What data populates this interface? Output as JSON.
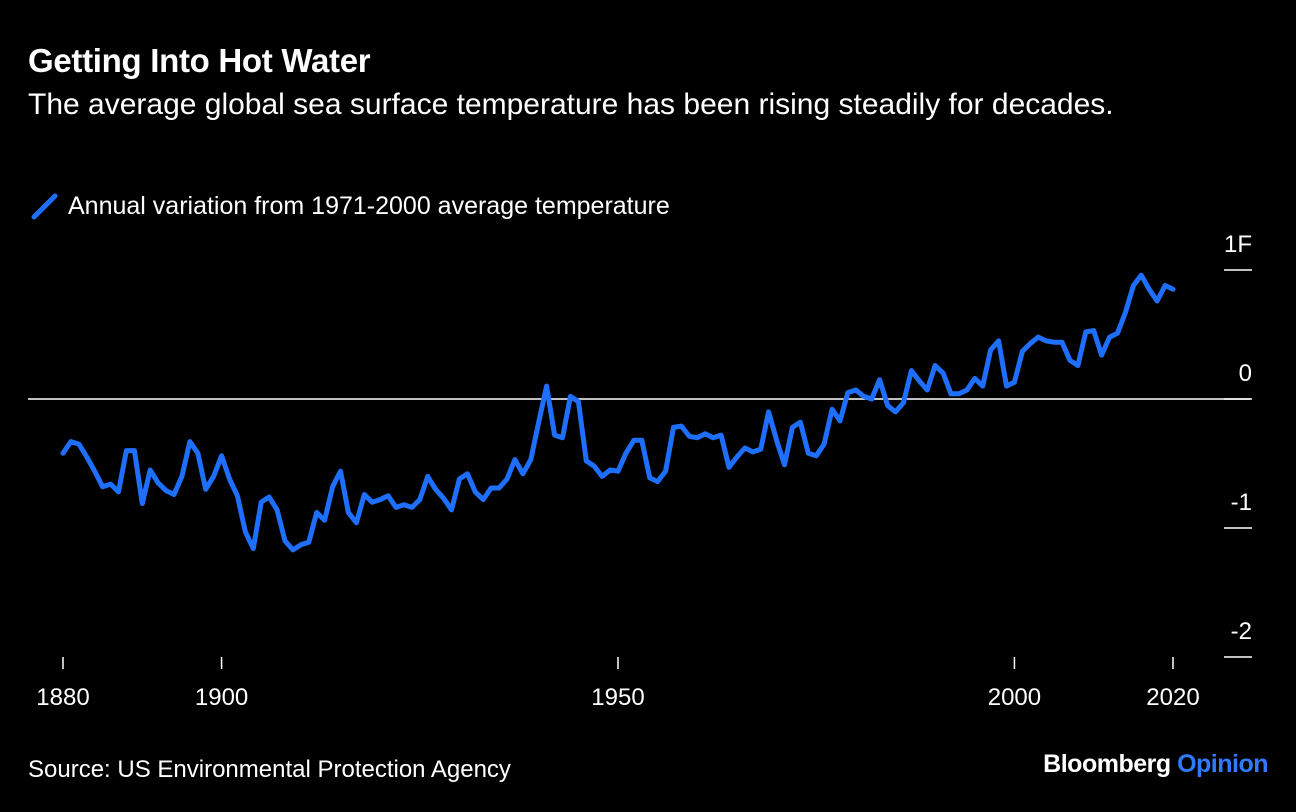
{
  "header": {
    "title": "Getting Into Hot Water",
    "subtitle": "The average global sea surface temperature has been rising steadily for decades."
  },
  "legend": {
    "label": "Annual variation from 1971-2000 average temperature"
  },
  "footer": {
    "source": "Source: US Environmental Protection Agency",
    "brand_name": "Bloomberg",
    "brand_suffix": "Opinion"
  },
  "colors": {
    "background": "#000000",
    "line": "#1f6fff",
    "text": "#ffffff",
    "brand_accent": "#2f7bff"
  },
  "chart_data": {
    "type": "line",
    "title": "Getting Into Hot Water",
    "xlabel": "",
    "ylabel": "",
    "xlim": [
      1876,
      2025
    ],
    "ylim": [
      -2,
      1
    ],
    "x_ticks": [
      1880,
      1900,
      1950,
      2000,
      2020
    ],
    "x_tick_labels": [
      "1880",
      "1900",
      "1950",
      "2000",
      "2020"
    ],
    "y_ticks": [
      1,
      0,
      -1,
      -2
    ],
    "y_tick_labels": [
      "1F",
      "0",
      "-1",
      "-2"
    ],
    "grid": false,
    "zero_line": true,
    "legend_position": "top-left",
    "series": [
      {
        "name": "Annual variation from 1971-2000 average temperature",
        "x": [
          1880,
          1881,
          1882,
          1883,
          1884,
          1885,
          1886,
          1887,
          1888,
          1889,
          1890,
          1891,
          1892,
          1893,
          1894,
          1895,
          1896,
          1897,
          1898,
          1899,
          1900,
          1901,
          1902,
          1903,
          1904,
          1905,
          1906,
          1907,
          1908,
          1909,
          1910,
          1911,
          1912,
          1913,
          1914,
          1915,
          1916,
          1917,
          1918,
          1919,
          1920,
          1921,
          1922,
          1923,
          1924,
          1925,
          1926,
          1927,
          1928,
          1929,
          1930,
          1931,
          1932,
          1933,
          1934,
          1935,
          1936,
          1937,
          1938,
          1939,
          1940,
          1941,
          1942,
          1943,
          1944,
          1945,
          1946,
          1947,
          1948,
          1949,
          1950,
          1951,
          1952,
          1953,
          1954,
          1955,
          1956,
          1957,
          1958,
          1959,
          1960,
          1961,
          1962,
          1963,
          1964,
          1965,
          1966,
          1967,
          1968,
          1969,
          1970,
          1971,
          1972,
          1973,
          1974,
          1975,
          1976,
          1977,
          1978,
          1979,
          1980,
          1981,
          1982,
          1983,
          1984,
          1985,
          1986,
          1987,
          1988,
          1989,
          1990,
          1991,
          1992,
          1993,
          1994,
          1995,
          1996,
          1997,
          1998,
          1999,
          2000,
          2001,
          2002,
          2003,
          2004,
          2005,
          2006,
          2007,
          2008,
          2009,
          2010,
          2011,
          2012,
          2013,
          2014,
          2015,
          2016,
          2017,
          2018,
          2019,
          2020
        ],
        "values": [
          -0.42,
          -0.33,
          -0.35,
          -0.45,
          -0.56,
          -0.68,
          -0.66,
          -0.72,
          -0.4,
          -0.4,
          -0.81,
          -0.55,
          -0.65,
          -0.71,
          -0.74,
          -0.6,
          -0.33,
          -0.42,
          -0.7,
          -0.6,
          -0.44,
          -0.62,
          -0.75,
          -1.03,
          -1.16,
          -0.8,
          -0.76,
          -0.86,
          -1.1,
          -1.17,
          -1.13,
          -1.11,
          -0.88,
          -0.94,
          -0.68,
          -0.56,
          -0.88,
          -0.96,
          -0.74,
          -0.8,
          -0.78,
          -0.75,
          -0.84,
          -0.82,
          -0.84,
          -0.78,
          -0.6,
          -0.7,
          -0.77,
          -0.86,
          -0.62,
          -0.58,
          -0.72,
          -0.78,
          -0.69,
          -0.69,
          -0.62,
          -0.47,
          -0.58,
          -0.47,
          -0.18,
          0.1,
          -0.28,
          -0.3,
          0.02,
          -0.02,
          -0.48,
          -0.52,
          -0.6,
          -0.55,
          -0.56,
          -0.42,
          -0.32,
          -0.32,
          -0.61,
          -0.64,
          -0.56,
          -0.22,
          -0.21,
          -0.29,
          -0.3,
          -0.27,
          -0.3,
          -0.28,
          -0.53,
          -0.45,
          -0.38,
          -0.41,
          -0.39,
          -0.1,
          -0.32,
          -0.51,
          -0.22,
          -0.18,
          -0.42,
          -0.44,
          -0.35,
          -0.08,
          -0.17,
          0.05,
          0.07,
          0.02,
          0.0,
          0.15,
          -0.05,
          -0.1,
          -0.03,
          0.22,
          0.14,
          0.07,
          0.26,
          0.2,
          0.04,
          0.04,
          0.07,
          0.16,
          0.1,
          0.38,
          0.45,
          0.1,
          0.13,
          0.37,
          0.43,
          0.48,
          0.45,
          0.44,
          0.44,
          0.3,
          0.26,
          0.52,
          0.53,
          0.34,
          0.48,
          0.51,
          0.67,
          0.88,
          0.96,
          0.85,
          0.76,
          0.88,
          0.85
        ]
      }
    ]
  }
}
